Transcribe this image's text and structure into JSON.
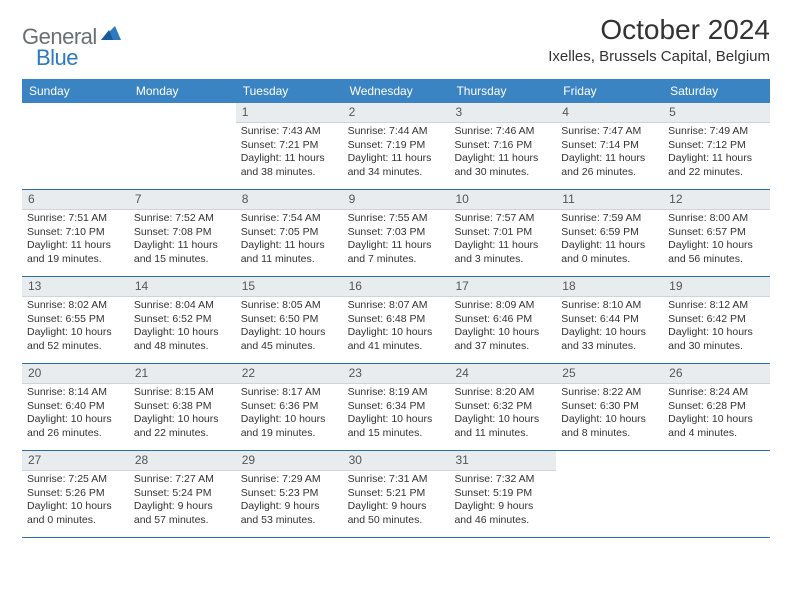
{
  "brand": {
    "name1": "General",
    "name2": "Blue"
  },
  "title": "October 2024",
  "location": "Ixelles, Brussels Capital, Belgium",
  "colors": {
    "header_bg": "#3b84c4",
    "header_text": "#ffffff",
    "daynum_bg": "#e9ecef",
    "border": "#2e6da4",
    "brand_gray": "#6a6f76",
    "brand_blue": "#2d7ac0"
  },
  "day_names": [
    "Sunday",
    "Monday",
    "Tuesday",
    "Wednesday",
    "Thursday",
    "Friday",
    "Saturday"
  ],
  "weeks": [
    [
      {
        "empty": true
      },
      {
        "empty": true
      },
      {
        "n": "1",
        "sr": "Sunrise: 7:43 AM",
        "ss": "Sunset: 7:21 PM",
        "dl": "Daylight: 11 hours and 38 minutes."
      },
      {
        "n": "2",
        "sr": "Sunrise: 7:44 AM",
        "ss": "Sunset: 7:19 PM",
        "dl": "Daylight: 11 hours and 34 minutes."
      },
      {
        "n": "3",
        "sr": "Sunrise: 7:46 AM",
        "ss": "Sunset: 7:16 PM",
        "dl": "Daylight: 11 hours and 30 minutes."
      },
      {
        "n": "4",
        "sr": "Sunrise: 7:47 AM",
        "ss": "Sunset: 7:14 PM",
        "dl": "Daylight: 11 hours and 26 minutes."
      },
      {
        "n": "5",
        "sr": "Sunrise: 7:49 AM",
        "ss": "Sunset: 7:12 PM",
        "dl": "Daylight: 11 hours and 22 minutes."
      }
    ],
    [
      {
        "n": "6",
        "sr": "Sunrise: 7:51 AM",
        "ss": "Sunset: 7:10 PM",
        "dl": "Daylight: 11 hours and 19 minutes."
      },
      {
        "n": "7",
        "sr": "Sunrise: 7:52 AM",
        "ss": "Sunset: 7:08 PM",
        "dl": "Daylight: 11 hours and 15 minutes."
      },
      {
        "n": "8",
        "sr": "Sunrise: 7:54 AM",
        "ss": "Sunset: 7:05 PM",
        "dl": "Daylight: 11 hours and 11 minutes."
      },
      {
        "n": "9",
        "sr": "Sunrise: 7:55 AM",
        "ss": "Sunset: 7:03 PM",
        "dl": "Daylight: 11 hours and 7 minutes."
      },
      {
        "n": "10",
        "sr": "Sunrise: 7:57 AM",
        "ss": "Sunset: 7:01 PM",
        "dl": "Daylight: 11 hours and 3 minutes."
      },
      {
        "n": "11",
        "sr": "Sunrise: 7:59 AM",
        "ss": "Sunset: 6:59 PM",
        "dl": "Daylight: 11 hours and 0 minutes."
      },
      {
        "n": "12",
        "sr": "Sunrise: 8:00 AM",
        "ss": "Sunset: 6:57 PM",
        "dl": "Daylight: 10 hours and 56 minutes."
      }
    ],
    [
      {
        "n": "13",
        "sr": "Sunrise: 8:02 AM",
        "ss": "Sunset: 6:55 PM",
        "dl": "Daylight: 10 hours and 52 minutes."
      },
      {
        "n": "14",
        "sr": "Sunrise: 8:04 AM",
        "ss": "Sunset: 6:52 PM",
        "dl": "Daylight: 10 hours and 48 minutes."
      },
      {
        "n": "15",
        "sr": "Sunrise: 8:05 AM",
        "ss": "Sunset: 6:50 PM",
        "dl": "Daylight: 10 hours and 45 minutes."
      },
      {
        "n": "16",
        "sr": "Sunrise: 8:07 AM",
        "ss": "Sunset: 6:48 PM",
        "dl": "Daylight: 10 hours and 41 minutes."
      },
      {
        "n": "17",
        "sr": "Sunrise: 8:09 AM",
        "ss": "Sunset: 6:46 PM",
        "dl": "Daylight: 10 hours and 37 minutes."
      },
      {
        "n": "18",
        "sr": "Sunrise: 8:10 AM",
        "ss": "Sunset: 6:44 PM",
        "dl": "Daylight: 10 hours and 33 minutes."
      },
      {
        "n": "19",
        "sr": "Sunrise: 8:12 AM",
        "ss": "Sunset: 6:42 PM",
        "dl": "Daylight: 10 hours and 30 minutes."
      }
    ],
    [
      {
        "n": "20",
        "sr": "Sunrise: 8:14 AM",
        "ss": "Sunset: 6:40 PM",
        "dl": "Daylight: 10 hours and 26 minutes."
      },
      {
        "n": "21",
        "sr": "Sunrise: 8:15 AM",
        "ss": "Sunset: 6:38 PM",
        "dl": "Daylight: 10 hours and 22 minutes."
      },
      {
        "n": "22",
        "sr": "Sunrise: 8:17 AM",
        "ss": "Sunset: 6:36 PM",
        "dl": "Daylight: 10 hours and 19 minutes."
      },
      {
        "n": "23",
        "sr": "Sunrise: 8:19 AM",
        "ss": "Sunset: 6:34 PM",
        "dl": "Daylight: 10 hours and 15 minutes."
      },
      {
        "n": "24",
        "sr": "Sunrise: 8:20 AM",
        "ss": "Sunset: 6:32 PM",
        "dl": "Daylight: 10 hours and 11 minutes."
      },
      {
        "n": "25",
        "sr": "Sunrise: 8:22 AM",
        "ss": "Sunset: 6:30 PM",
        "dl": "Daylight: 10 hours and 8 minutes."
      },
      {
        "n": "26",
        "sr": "Sunrise: 8:24 AM",
        "ss": "Sunset: 6:28 PM",
        "dl": "Daylight: 10 hours and 4 minutes."
      }
    ],
    [
      {
        "n": "27",
        "sr": "Sunrise: 7:25 AM",
        "ss": "Sunset: 5:26 PM",
        "dl": "Daylight: 10 hours and 0 minutes."
      },
      {
        "n": "28",
        "sr": "Sunrise: 7:27 AM",
        "ss": "Sunset: 5:24 PM",
        "dl": "Daylight: 9 hours and 57 minutes."
      },
      {
        "n": "29",
        "sr": "Sunrise: 7:29 AM",
        "ss": "Sunset: 5:23 PM",
        "dl": "Daylight: 9 hours and 53 minutes."
      },
      {
        "n": "30",
        "sr": "Sunrise: 7:31 AM",
        "ss": "Sunset: 5:21 PM",
        "dl": "Daylight: 9 hours and 50 minutes."
      },
      {
        "n": "31",
        "sr": "Sunrise: 7:32 AM",
        "ss": "Sunset: 5:19 PM",
        "dl": "Daylight: 9 hours and 46 minutes."
      },
      {
        "empty": true
      },
      {
        "empty": true
      }
    ]
  ]
}
